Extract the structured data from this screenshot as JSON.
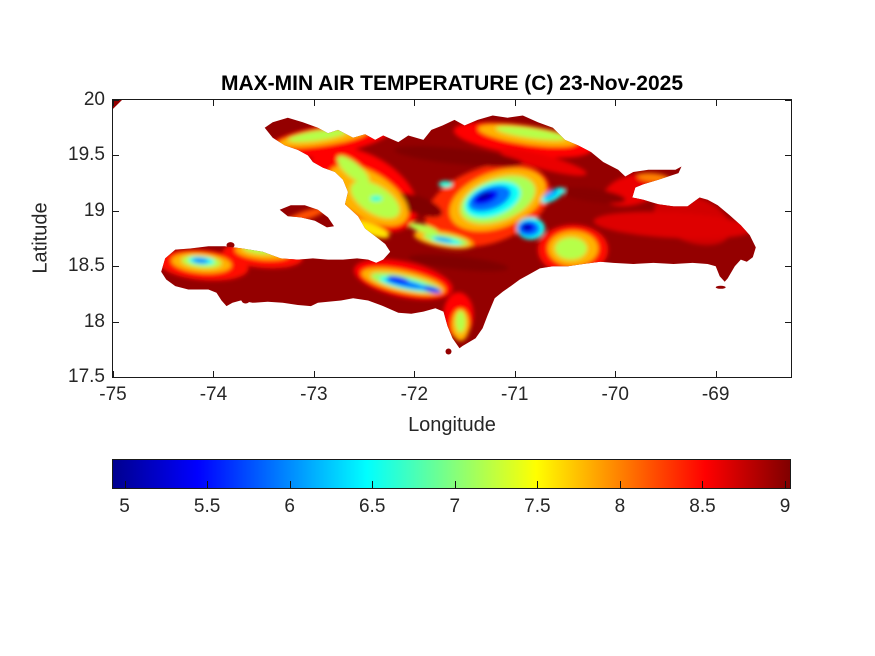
{
  "chart_data": {
    "type": "heatmap",
    "title": "MAX-MIN AIR TEMPERATURE (C) 23-Nov-2025",
    "xlabel": "Longitude",
    "ylabel": "Latitude",
    "region_shown": "Hispaniola (Haiti and Dominican Republic) diurnal temperature range map",
    "xlim": [
      -75,
      -68.25
    ],
    "ylim": [
      17.5,
      20
    ],
    "xtick_values": [
      -75,
      -74,
      -73,
      -72,
      -71,
      -70,
      -69
    ],
    "xtick_labels": [
      "-75",
      "-74",
      "-73",
      "-72",
      "-71",
      "-70",
      "-69"
    ],
    "ytick_values": [
      20,
      19.5,
      19,
      18.5,
      18,
      17.5
    ],
    "ytick_labels": [
      "20",
      "19.5",
      "19",
      "18.5",
      "18",
      "17.5"
    ],
    "grid": false,
    "colorbar": {
      "orientation": "horizontal",
      "colormap": "jet",
      "min": 4.93,
      "max": 9.03,
      "tick_values": [
        5,
        5.5,
        6,
        6.5,
        7,
        7.5,
        8,
        8.5,
        9
      ],
      "tick_labels": [
        "5",
        "5.5",
        "6",
        "6.5",
        "7",
        "7.5",
        "8",
        "8.5",
        "9"
      ]
    },
    "base_field_value": 8.95,
    "island_outline": [
      [
        -73.49,
        19.75
      ],
      [
        -73.41,
        19.8
      ],
      [
        -73.26,
        19.84
      ],
      [
        -73.11,
        19.8
      ],
      [
        -72.96,
        19.75
      ],
      [
        -72.86,
        19.7
      ],
      [
        -72.76,
        19.73
      ],
      [
        -72.61,
        19.66
      ],
      [
        -72.49,
        19.69
      ],
      [
        -72.39,
        19.64
      ],
      [
        -72.31,
        19.68
      ],
      [
        -72.16,
        19.62
      ],
      [
        -72.06,
        19.68
      ],
      [
        -71.91,
        19.64
      ],
      [
        -71.83,
        19.73
      ],
      [
        -71.72,
        19.77
      ],
      [
        -71.6,
        19.82
      ],
      [
        -71.5,
        19.77
      ],
      [
        -71.37,
        19.82
      ],
      [
        -71.22,
        19.86
      ],
      [
        -71.07,
        19.84
      ],
      [
        -70.92,
        19.86
      ],
      [
        -70.77,
        19.8
      ],
      [
        -70.62,
        19.75
      ],
      [
        -70.5,
        19.64
      ],
      [
        -70.37,
        19.59
      ],
      [
        -70.24,
        19.53
      ],
      [
        -70.12,
        19.44
      ],
      [
        -69.97,
        19.37
      ],
      [
        -69.9,
        19.31
      ],
      [
        -69.82,
        19.35
      ],
      [
        -69.67,
        19.37
      ],
      [
        -69.52,
        19.37
      ],
      [
        -69.4,
        19.37
      ],
      [
        -69.34,
        19.4
      ],
      [
        -69.37,
        19.34
      ],
      [
        -69.57,
        19.28
      ],
      [
        -69.72,
        19.24
      ],
      [
        -69.8,
        19.21
      ],
      [
        -69.83,
        19.12
      ],
      [
        -69.72,
        19.1
      ],
      [
        -69.57,
        19.06
      ],
      [
        -69.42,
        19.04
      ],
      [
        -69.28,
        19.04
      ],
      [
        -69.16,
        19.12
      ],
      [
        -69.08,
        19.1
      ],
      [
        -68.98,
        19.05
      ],
      [
        -68.86,
        18.96
      ],
      [
        -68.75,
        18.87
      ],
      [
        -68.66,
        18.78
      ],
      [
        -68.6,
        18.67
      ],
      [
        -68.63,
        18.58
      ],
      [
        -68.69,
        18.54
      ],
      [
        -68.75,
        18.56
      ],
      [
        -68.81,
        18.5
      ],
      [
        -68.88,
        18.39
      ],
      [
        -68.91,
        18.36
      ],
      [
        -68.96,
        18.41
      ],
      [
        -69.0,
        18.5
      ],
      [
        -69.08,
        18.52
      ],
      [
        -69.23,
        18.53
      ],
      [
        -69.42,
        18.52
      ],
      [
        -69.62,
        18.53
      ],
      [
        -69.82,
        18.52
      ],
      [
        -70.02,
        18.53
      ],
      [
        -70.15,
        18.54
      ],
      [
        -70.32,
        18.52
      ],
      [
        -70.47,
        18.5
      ],
      [
        -70.62,
        18.5
      ],
      [
        -70.75,
        18.48
      ],
      [
        -70.87,
        18.42
      ],
      [
        -70.95,
        18.38
      ],
      [
        -71.04,
        18.32
      ],
      [
        -71.12,
        18.27
      ],
      [
        -71.2,
        18.21
      ],
      [
        -71.27,
        18.06
      ],
      [
        -71.32,
        17.94
      ],
      [
        -71.39,
        17.85
      ],
      [
        -71.52,
        17.78
      ],
      [
        -71.55,
        17.76
      ],
      [
        -71.62,
        17.85
      ],
      [
        -71.67,
        17.96
      ],
      [
        -71.71,
        18.09
      ],
      [
        -71.79,
        18.12
      ],
      [
        -71.91,
        18.09
      ],
      [
        -72.03,
        18.07
      ],
      [
        -72.16,
        18.08
      ],
      [
        -72.31,
        18.14
      ],
      [
        -72.46,
        18.19
      ],
      [
        -72.61,
        18.21
      ],
      [
        -72.73,
        18.19
      ],
      [
        -72.86,
        18.18
      ],
      [
        -72.96,
        18.17
      ],
      [
        -73.03,
        18.14
      ],
      [
        -73.16,
        18.15
      ],
      [
        -73.31,
        18.17
      ],
      [
        -73.46,
        18.18
      ],
      [
        -73.61,
        18.17
      ],
      [
        -73.73,
        18.19
      ],
      [
        -73.81,
        18.17
      ],
      [
        -73.87,
        18.14
      ],
      [
        -73.92,
        18.19
      ],
      [
        -73.97,
        18.26
      ],
      [
        -74.05,
        18.29
      ],
      [
        -74.13,
        18.29
      ],
      [
        -74.25,
        18.29
      ],
      [
        -74.38,
        18.32
      ],
      [
        -74.47,
        18.38
      ],
      [
        -74.52,
        18.45
      ],
      [
        -74.48,
        18.57
      ],
      [
        -74.38,
        18.65
      ],
      [
        -74.23,
        18.66
      ],
      [
        -74.05,
        18.68
      ],
      [
        -73.89,
        18.68
      ],
      [
        -73.71,
        18.66
      ],
      [
        -73.51,
        18.63
      ],
      [
        -73.33,
        18.57
      ],
      [
        -73.16,
        18.56
      ],
      [
        -73.01,
        18.57
      ],
      [
        -72.86,
        18.56
      ],
      [
        -72.71,
        18.56
      ],
      [
        -72.57,
        18.57
      ],
      [
        -72.46,
        18.56
      ],
      [
        -72.38,
        18.53
      ],
      [
        -72.31,
        18.56
      ],
      [
        -72.24,
        18.63
      ],
      [
        -72.29,
        18.7
      ],
      [
        -72.39,
        18.77
      ],
      [
        -72.49,
        18.84
      ],
      [
        -72.56,
        18.95
      ],
      [
        -72.69,
        19.06
      ],
      [
        -72.66,
        19.17
      ],
      [
        -72.71,
        19.28
      ],
      [
        -72.79,
        19.35
      ],
      [
        -72.91,
        19.39
      ],
      [
        -73.01,
        19.44
      ],
      [
        -73.06,
        19.5
      ],
      [
        -73.16,
        19.55
      ],
      [
        -73.29,
        19.59
      ],
      [
        -73.41,
        19.66
      ]
    ],
    "gonave_island_outline": [
      [
        -73.34,
        19.01
      ],
      [
        -73.23,
        19.05
      ],
      [
        -73.09,
        19.05
      ],
      [
        -72.96,
        19.01
      ],
      [
        -72.86,
        18.94
      ],
      [
        -72.8,
        18.86
      ],
      [
        -72.87,
        18.85
      ],
      [
        -72.99,
        18.91
      ],
      [
        -73.13,
        18.94
      ],
      [
        -73.26,
        18.95
      ]
    ],
    "cuba_corner_outline": [
      [
        -75.0,
        20.0
      ],
      [
        -74.91,
        20.0
      ],
      [
        -75.0,
        19.92
      ]
    ],
    "islets": [
      {
        "name": "cayemites",
        "lon": -73.83,
        "lat": 18.69,
        "rx": 4,
        "ry": 3
      },
      {
        "name": "ile-a-vache",
        "lon": -73.68,
        "lat": 18.19,
        "rx": 4,
        "ry": 3
      },
      {
        "name": "beata",
        "lon": -71.66,
        "lat": 17.73,
        "rx": 3,
        "ry": 3
      },
      {
        "name": "saona",
        "lon": -68.95,
        "lat": 18.31,
        "rx": 5,
        "ry": 1.5
      }
    ],
    "field_blobs": [
      {
        "lon": -72.86,
        "lat": 19.64,
        "w": 1.29,
        "h": 0.27,
        "rot": -10,
        "v": 8.5
      },
      {
        "lon": -72.51,
        "lat": 19.19,
        "w": 1.19,
        "h": 0.63,
        "rot": 30,
        "v": 8.5
      },
      {
        "lon": -74.1,
        "lat": 18.51,
        "w": 0.9,
        "h": 0.27,
        "rot": 5,
        "v": 8.45
      },
      {
        "lon": -73.51,
        "lat": 18.6,
        "w": 0.8,
        "h": 0.23,
        "rot": 5,
        "v": 8.45
      },
      {
        "lon": -72.11,
        "lat": 18.38,
        "w": 1.0,
        "h": 0.32,
        "rot": 12,
        "v": 8.5
      },
      {
        "lon": -70.92,
        "lat": 19.64,
        "w": 1.39,
        "h": 0.27,
        "rot": 8,
        "v": 8.5
      },
      {
        "lon": -71.27,
        "lat": 19.05,
        "w": 1.29,
        "h": 0.68,
        "rot": -20,
        "v": 8.35
      },
      {
        "lon": -70.42,
        "lat": 18.65,
        "w": 0.7,
        "h": 0.45,
        "rot": 0,
        "v": 8.45
      },
      {
        "lon": -69.23,
        "lat": 18.92,
        "w": 0.8,
        "h": 0.41,
        "rot": 20,
        "v": 8.7
      },
      {
        "lon": -69.82,
        "lat": 19.19,
        "w": 0.6,
        "h": 0.27,
        "rot": -15,
        "v": 8.6
      },
      {
        "lon": -71.56,
        "lat": 18.06,
        "w": 0.3,
        "h": 0.41,
        "rot": 0,
        "v": 8.5
      },
      {
        "lon": -69.42,
        "lat": 18.87,
        "w": 1.59,
        "h": 0.23,
        "rot": 3,
        "v": 8.65
      },
      {
        "lon": -70.72,
        "lat": 19.44,
        "w": 0.9,
        "h": 0.13,
        "rot": 15,
        "v": 8.6
      },
      {
        "lon": -73.08,
        "lat": 18.96,
        "w": 0.42,
        "h": 0.08,
        "rot": -18,
        "v": 8.2
      },
      {
        "lon": -71.56,
        "lat": 19.49,
        "w": 1.29,
        "h": 0.14,
        "rot": 6,
        "v": 9.03
      },
      {
        "lon": -71.56,
        "lat": 18.53,
        "w": 1.0,
        "h": 0.12,
        "rot": 6,
        "v": 9.03
      },
      {
        "lon": -71.96,
        "lat": 19.05,
        "w": 0.5,
        "h": 0.16,
        "rot": 20,
        "v": 9.03
      },
      {
        "lon": -70.22,
        "lat": 19.14,
        "w": 0.65,
        "h": 0.12,
        "rot": 8,
        "v": 9.0
      },
      {
        "lon": -72.91,
        "lat": 19.66,
        "w": 0.9,
        "h": 0.14,
        "rot": -8,
        "v": 7.8
      },
      {
        "lon": -72.46,
        "lat": 19.14,
        "w": 0.9,
        "h": 0.41,
        "rot": 32,
        "v": 7.8
      },
      {
        "lon": -71.17,
        "lat": 19.1,
        "w": 1.0,
        "h": 0.5,
        "rot": -20,
        "v": 7.8
      },
      {
        "lon": -70.87,
        "lat": 19.68,
        "w": 1.0,
        "h": 0.16,
        "rot": 8,
        "v": 7.8
      },
      {
        "lon": -74.12,
        "lat": 18.53,
        "w": 0.6,
        "h": 0.18,
        "rot": 5,
        "v": 7.8
      },
      {
        "lon": -73.51,
        "lat": 18.63,
        "w": 0.55,
        "h": 0.14,
        "rot": 5,
        "v": 7.8
      },
      {
        "lon": -72.11,
        "lat": 18.36,
        "w": 0.85,
        "h": 0.2,
        "rot": 12,
        "v": 7.8
      },
      {
        "lon": -71.71,
        "lat": 18.74,
        "w": 0.6,
        "h": 0.14,
        "rot": 10,
        "v": 7.8
      },
      {
        "lon": -70.42,
        "lat": 18.66,
        "w": 0.5,
        "h": 0.32,
        "rot": 0,
        "v": 7.8
      },
      {
        "lon": -71.54,
        "lat": 17.97,
        "w": 0.18,
        "h": 0.29,
        "rot": 0,
        "v": 7.8
      },
      {
        "lon": -69.62,
        "lat": 19.3,
        "w": 0.32,
        "h": 0.08,
        "rot": 5,
        "v": 8.0
      },
      {
        "lon": -72.46,
        "lat": 18.84,
        "w": 0.45,
        "h": 0.11,
        "rot": 20,
        "v": 7.6
      },
      {
        "lon": -72.96,
        "lat": 19.68,
        "w": 0.6,
        "h": 0.09,
        "rot": -8,
        "v": 7.2
      },
      {
        "lon": -72.39,
        "lat": 19.1,
        "w": 0.55,
        "h": 0.25,
        "rot": 32,
        "v": 7.2
      },
      {
        "lon": -72.61,
        "lat": 19.37,
        "w": 0.4,
        "h": 0.13,
        "rot": 40,
        "v": 7.2
      },
      {
        "lon": -71.17,
        "lat": 19.1,
        "w": 0.78,
        "h": 0.38,
        "rot": -20,
        "v": 7.15
      },
      {
        "lon": -70.84,
        "lat": 19.7,
        "w": 0.7,
        "h": 0.09,
        "rot": 8,
        "v": 7.2
      },
      {
        "lon": -74.12,
        "lat": 18.54,
        "w": 0.4,
        "h": 0.11,
        "rot": 5,
        "v": 7.2
      },
      {
        "lon": -73.53,
        "lat": 18.65,
        "w": 0.35,
        "h": 0.08,
        "rot": 5,
        "v": 7.2
      },
      {
        "lon": -72.09,
        "lat": 18.35,
        "w": 0.7,
        "h": 0.13,
        "rot": 12,
        "v": 7.1
      },
      {
        "lon": -71.69,
        "lat": 18.74,
        "w": 0.45,
        "h": 0.09,
        "rot": 10,
        "v": 7.1
      },
      {
        "lon": -70.44,
        "lat": 18.66,
        "w": 0.32,
        "h": 0.2,
        "rot": 0,
        "v": 7.2
      },
      {
        "lon": -71.54,
        "lat": 18.0,
        "w": 0.1,
        "h": 0.2,
        "rot": 0,
        "v": 7.2
      },
      {
        "lon": -71.91,
        "lat": 18.84,
        "w": 0.3,
        "h": 0.07,
        "rot": 15,
        "v": 7.2
      },
      {
        "lon": -71.22,
        "lat": 19.1,
        "w": 0.58,
        "h": 0.29,
        "rot": -20,
        "v": 6.5
      },
      {
        "lon": -72.09,
        "lat": 18.34,
        "w": 0.52,
        "h": 0.09,
        "rot": 12,
        "v": 6.5
      },
      {
        "lon": -74.12,
        "lat": 18.55,
        "w": 0.26,
        "h": 0.07,
        "rot": 5,
        "v": 6.5
      },
      {
        "lon": -71.68,
        "lat": 18.73,
        "w": 0.3,
        "h": 0.05,
        "rot": 10,
        "v": 6.5
      },
      {
        "lon": -70.84,
        "lat": 18.84,
        "w": 0.28,
        "h": 0.2,
        "rot": 0,
        "v": 6.5
      },
      {
        "lon": -70.62,
        "lat": 19.14,
        "w": 0.26,
        "h": 0.09,
        "rot": -30,
        "v": 6.5
      },
      {
        "lon": -72.38,
        "lat": 19.11,
        "w": 0.12,
        "h": 0.05,
        "rot": 0,
        "v": 6.6
      },
      {
        "lon": -71.69,
        "lat": 19.24,
        "w": 0.14,
        "h": 0.06,
        "rot": 0,
        "v": 6.6
      },
      {
        "lon": -71.25,
        "lat": 19.11,
        "w": 0.44,
        "h": 0.2,
        "rot": -20,
        "v": 5.9
      },
      {
        "lon": -72.09,
        "lat": 18.34,
        "w": 0.4,
        "h": 0.06,
        "rot": 12,
        "v": 5.9
      },
      {
        "lon": -74.13,
        "lat": 18.55,
        "w": 0.16,
        "h": 0.05,
        "rot": 5,
        "v": 6.0
      },
      {
        "lon": -70.86,
        "lat": 18.84,
        "w": 0.22,
        "h": 0.14,
        "rot": 0,
        "v": 5.9
      },
      {
        "lon": -70.64,
        "lat": 19.15,
        "w": 0.16,
        "h": 0.06,
        "rot": -30,
        "v": 6.1
      },
      {
        "lon": -71.71,
        "lat": 18.74,
        "w": 0.18,
        "h": 0.04,
        "rot": 10,
        "v": 6.1
      },
      {
        "lon": -71.29,
        "lat": 19.12,
        "w": 0.26,
        "h": 0.11,
        "rot": -20,
        "v": 5.4
      },
      {
        "lon": -70.87,
        "lat": 18.85,
        "w": 0.14,
        "h": 0.09,
        "rot": 0,
        "v": 5.4
      },
      {
        "lon": -72.16,
        "lat": 18.38,
        "w": 0.22,
        "h": 0.05,
        "rot": 12,
        "v": 5.5
      },
      {
        "lon": -71.83,
        "lat": 18.29,
        "w": 0.2,
        "h": 0.05,
        "rot": 14,
        "v": 5.5
      },
      {
        "lon": -71.3,
        "lat": 19.13,
        "w": 0.14,
        "h": 0.05,
        "rot": -20,
        "v": 5.0
      },
      {
        "lon": -70.88,
        "lat": 18.85,
        "w": 0.08,
        "h": 0.05,
        "rot": 0,
        "v": 5.05
      }
    ]
  }
}
